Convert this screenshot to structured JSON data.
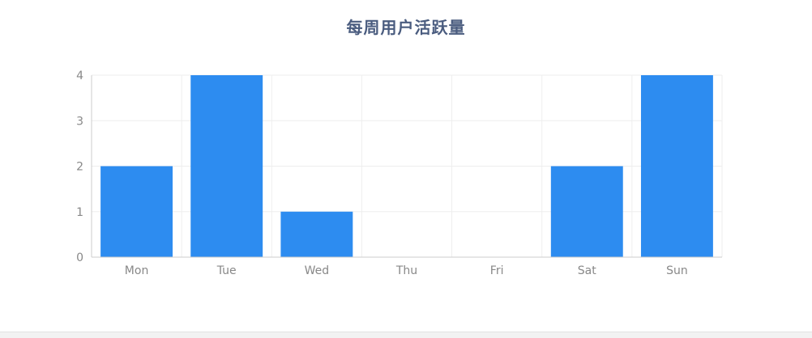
{
  "chart_data": {
    "type": "bar",
    "title": "每周用户活跃量",
    "categories": [
      "Mon",
      "Tue",
      "Wed",
      "Thu",
      "Fri",
      "Sat",
      "Sun"
    ],
    "values": [
      2,
      4,
      1,
      0,
      0,
      2,
      4
    ],
    "ylim": [
      0,
      4
    ],
    "yticks": [
      0,
      1,
      2,
      3,
      4
    ],
    "xlabel": "",
    "ylabel": "",
    "grid": true,
    "legend": "none",
    "bar_color": "#2d8cf0",
    "grid_color": "#eeeeee",
    "axis_color": "#cccccc",
    "label_color": "#888888",
    "title_color": "#4a5c7f"
  }
}
